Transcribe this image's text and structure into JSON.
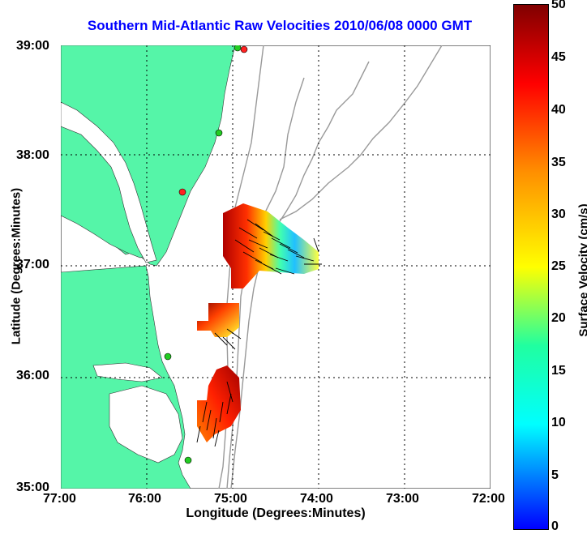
{
  "title": "Southern Mid-Atlantic Raw Velocities 2010/06/08 0000 GMT",
  "axes": {
    "xlabel": "Longitude (Degrees:Minutes)",
    "ylabel": "Latitude (Degrees:Minutes)",
    "x_ticks": [
      "77:00",
      "76:00",
      "75:00",
      "74:00",
      "73:00",
      "72:00"
    ],
    "y_ticks": [
      "39:00",
      "38:00",
      "37:00",
      "36:00",
      "35:00"
    ],
    "x_range_deg_west": [
      77,
      72
    ],
    "y_range_deg_north": [
      35,
      39
    ],
    "grid": "dotted"
  },
  "colorbar": {
    "label": "Surface Velocity (cm/s)",
    "ticks": [
      "50",
      "45",
      "40",
      "35",
      "30",
      "25",
      "20",
      "15",
      "10",
      "5",
      "0"
    ],
    "range": [
      0,
      50
    ],
    "colormap": [
      "#0000ff",
      "#00ffff",
      "#00ff80",
      "#ffff00",
      "#ff8000",
      "#ff0000",
      "#800000"
    ]
  },
  "colors": {
    "land": "#55f5a8",
    "bathymetry": "#999999",
    "site_active": "#22cc22",
    "site_inactive": "#ff2222",
    "vector": "#000000"
  }
}
